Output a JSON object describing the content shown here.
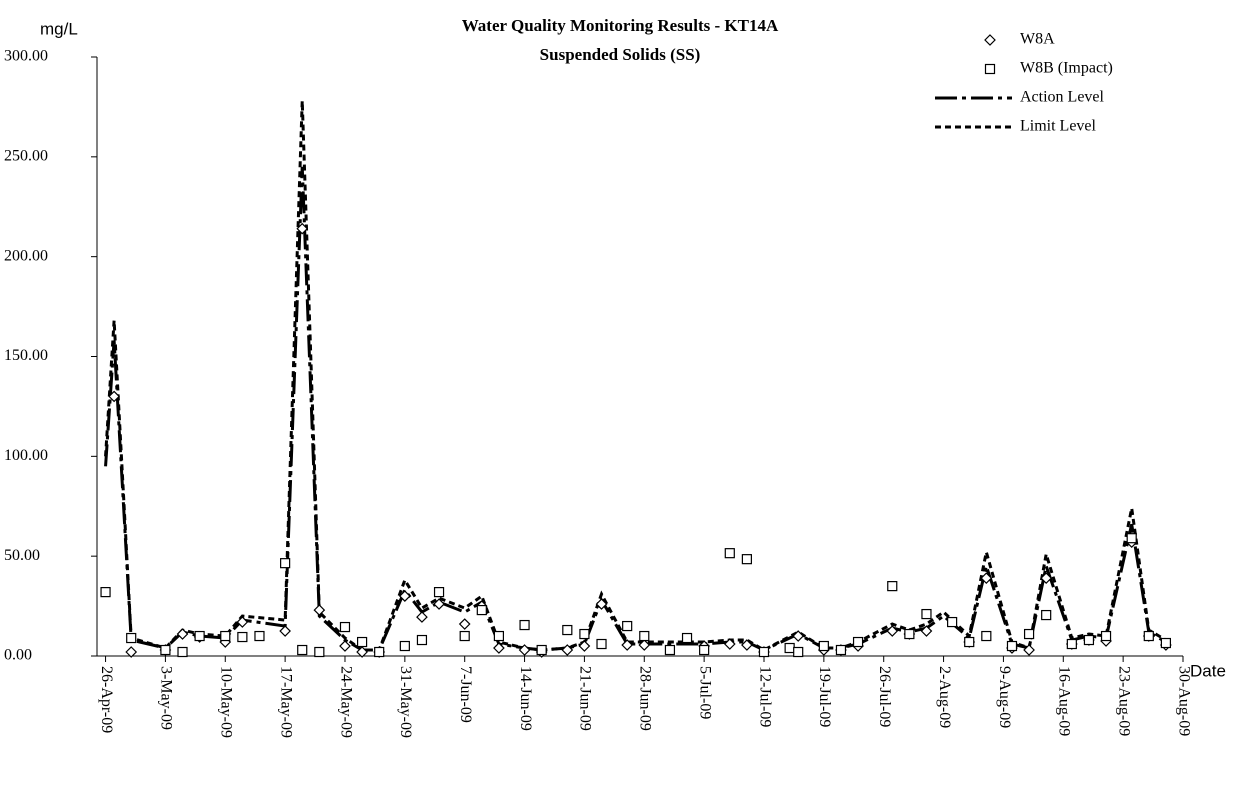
{
  "chart_data": {
    "type": "scatter",
    "title": "Water Quality Monitoring Results - KT14A",
    "subtitle": "Suspended Solids (SS)",
    "y_label": "mg/L",
    "x_label": "Date",
    "xlim": [
      "2009-04-25",
      "2009-08-30"
    ],
    "ylim": [
      0,
      300
    ],
    "yticks": [
      {
        "value": 0,
        "label": "0.00"
      },
      {
        "value": 50,
        "label": "50.00"
      },
      {
        "value": 100,
        "label": "100.00"
      },
      {
        "value": 150,
        "label": "150.00"
      },
      {
        "value": 200,
        "label": "200.00"
      },
      {
        "value": 250,
        "label": "250.00"
      },
      {
        "value": 300,
        "label": "300.00"
      }
    ],
    "xticks": [
      {
        "value": "2009-04-26",
        "label": "26-Apr-09"
      },
      {
        "value": "2009-05-03",
        "label": "3-May-09"
      },
      {
        "value": "2009-05-10",
        "label": "10-May-09"
      },
      {
        "value": "2009-05-17",
        "label": "17-May-09"
      },
      {
        "value": "2009-05-24",
        "label": "24-May-09"
      },
      {
        "value": "2009-05-31",
        "label": "31-May-09"
      },
      {
        "value": "2009-06-07",
        "label": "7-Jun-09"
      },
      {
        "value": "2009-06-14",
        "label": "14-Jun-09"
      },
      {
        "value": "2009-06-21",
        "label": "21-Jun-09"
      },
      {
        "value": "2009-06-28",
        "label": "28-Jun-09"
      },
      {
        "value": "2009-07-05",
        "label": "5-Jul-09"
      },
      {
        "value": "2009-07-12",
        "label": "12-Jul-09"
      },
      {
        "value": "2009-07-19",
        "label": "19-Jul-09"
      },
      {
        "value": "2009-07-26",
        "label": "26-Jul-09"
      },
      {
        "value": "2009-08-02",
        "label": "2-Aug-09"
      },
      {
        "value": "2009-08-09",
        "label": "9-Aug-09"
      },
      {
        "value": "2009-08-16",
        "label": "16-Aug-09"
      },
      {
        "value": "2009-08-23",
        "label": "23-Aug-09"
      },
      {
        "value": "2009-08-30",
        "label": "30-Aug-09"
      }
    ],
    "series": [
      {
        "name": "W8A",
        "color": "#000000",
        "marker": "diamond",
        "x": [
          "2009-04-27",
          "2009-04-29",
          "2009-05-03",
          "2009-05-05",
          "2009-05-07",
          "2009-05-10",
          "2009-05-12",
          "2009-05-17",
          "2009-05-19",
          "2009-05-21",
          "2009-05-24",
          "2009-05-26",
          "2009-05-28",
          "2009-05-31",
          "2009-06-02",
          "2009-06-04",
          "2009-06-07",
          "2009-06-09",
          "2009-06-11",
          "2009-06-14",
          "2009-06-16",
          "2009-06-19",
          "2009-06-21",
          "2009-06-23",
          "2009-06-26",
          "2009-06-28",
          "2009-07-05",
          "2009-07-08",
          "2009-07-10",
          "2009-07-12",
          "2009-07-16",
          "2009-07-19",
          "2009-07-21",
          "2009-07-23",
          "2009-07-27",
          "2009-07-29",
          "2009-07-31",
          "2009-08-05",
          "2009-08-07",
          "2009-08-10",
          "2009-08-12",
          "2009-08-14",
          "2009-08-17",
          "2009-08-19",
          "2009-08-21",
          "2009-08-24",
          "2009-08-26",
          "2009-08-28"
        ],
        "values": [
          130,
          2,
          3,
          11,
          9.5,
          7,
          17,
          12.5,
          214,
          23,
          5,
          2,
          2,
          30,
          19.5,
          26,
          16,
          25,
          4,
          3,
          2,
          3,
          5,
          26,
          5.5,
          5.5,
          5,
          6,
          5.5,
          2,
          10,
          3,
          3,
          5,
          12.5,
          11,
          12.5,
          7,
          39,
          4,
          3,
          39,
          6,
          8,
          7.5,
          57,
          10,
          5.5
        ]
      },
      {
        "name": "W8B (Impact)",
        "color": "#000000",
        "marker": "square",
        "x": [
          "2009-04-26",
          "2009-04-29",
          "2009-05-03",
          "2009-05-05",
          "2009-05-07",
          "2009-05-10",
          "2009-05-12",
          "2009-05-14",
          "2009-05-17",
          "2009-05-19",
          "2009-05-21",
          "2009-05-24",
          "2009-05-26",
          "2009-05-28",
          "2009-05-31",
          "2009-06-02",
          "2009-06-04",
          "2009-06-07",
          "2009-06-09",
          "2009-06-11",
          "2009-06-14",
          "2009-06-16",
          "2009-06-19",
          "2009-06-21",
          "2009-06-23",
          "2009-06-26",
          "2009-06-28",
          "2009-07-01",
          "2009-07-03",
          "2009-07-05",
          "2009-07-08",
          "2009-07-10",
          "2009-07-12",
          "2009-07-15",
          "2009-07-16",
          "2009-07-19",
          "2009-07-21",
          "2009-07-23",
          "2009-07-27",
          "2009-07-29",
          "2009-07-31",
          "2009-08-03",
          "2009-08-05",
          "2009-08-07",
          "2009-08-10",
          "2009-08-12",
          "2009-08-14",
          "2009-08-17",
          "2009-08-19",
          "2009-08-21",
          "2009-08-24",
          "2009-08-26",
          "2009-08-28"
        ],
        "values": [
          32,
          9,
          3,
          2,
          10,
          10,
          9.5,
          10,
          46.5,
          3,
          2,
          14.5,
          7,
          2,
          5,
          8,
          32,
          10,
          23,
          10,
          15.5,
          3,
          13,
          11,
          6,
          15,
          10,
          3,
          9,
          3,
          51.5,
          48.5,
          2,
          4,
          2,
          5,
          3,
          7,
          35,
          11,
          21,
          17,
          7,
          10,
          5,
          11,
          20.5,
          6,
          8,
          10,
          59,
          10,
          6.5
        ]
      },
      {
        "name": "Action Level",
        "color": "#000000",
        "dash": "dash-dot",
        "x": [
          "2009-04-26",
          "2009-04-27",
          "2009-04-29",
          "2009-05-03",
          "2009-05-05",
          "2009-05-07",
          "2009-05-10",
          "2009-05-12",
          "2009-05-17",
          "2009-05-19",
          "2009-05-21",
          "2009-05-24",
          "2009-05-26",
          "2009-05-28",
          "2009-05-31",
          "2009-06-02",
          "2009-06-04",
          "2009-06-07",
          "2009-06-09",
          "2009-06-11",
          "2009-06-14",
          "2009-06-16",
          "2009-06-19",
          "2009-06-21",
          "2009-06-23",
          "2009-06-26",
          "2009-06-28",
          "2009-07-05",
          "2009-07-08",
          "2009-07-10",
          "2009-07-12",
          "2009-07-16",
          "2009-07-19",
          "2009-07-21",
          "2009-07-23",
          "2009-07-27",
          "2009-07-29",
          "2009-07-31",
          "2009-08-02",
          "2009-08-05",
          "2009-08-07",
          "2009-08-10",
          "2009-08-12",
          "2009-08-14",
          "2009-08-17",
          "2009-08-19",
          "2009-08-21",
          "2009-08-24",
          "2009-08-26",
          "2009-08-28"
        ],
        "values": [
          95,
          158,
          8,
          4,
          12,
          10,
          9,
          18,
          15,
          245,
          20,
          8,
          3,
          3,
          33,
          22,
          27,
          22,
          27,
          6,
          4,
          3,
          4,
          6,
          28,
          6,
          6,
          6,
          7,
          7,
          3,
          11,
          4,
          4,
          6,
          14,
          12,
          14,
          20,
          9,
          45,
          6,
          4,
          45,
          8,
          10,
          9,
          66,
          12,
          7
        ]
      },
      {
        "name": "Limit Level",
        "color": "#000000",
        "dash": "dash",
        "x": [
          "2009-04-26",
          "2009-04-27",
          "2009-04-29",
          "2009-05-03",
          "2009-05-05",
          "2009-05-07",
          "2009-05-10",
          "2009-05-12",
          "2009-05-17",
          "2009-05-19",
          "2009-05-21",
          "2009-05-24",
          "2009-05-26",
          "2009-05-28",
          "2009-05-31",
          "2009-06-02",
          "2009-06-04",
          "2009-06-07",
          "2009-06-09",
          "2009-06-11",
          "2009-06-14",
          "2009-06-16",
          "2009-06-19",
          "2009-06-21",
          "2009-06-23",
          "2009-06-26",
          "2009-06-28",
          "2009-07-05",
          "2009-07-08",
          "2009-07-10",
          "2009-07-12",
          "2009-07-16",
          "2009-07-19",
          "2009-07-21",
          "2009-07-23",
          "2009-07-27",
          "2009-07-29",
          "2009-07-31",
          "2009-08-02",
          "2009-08-05",
          "2009-08-07",
          "2009-08-10",
          "2009-08-12",
          "2009-08-14",
          "2009-08-17",
          "2009-08-19",
          "2009-08-21",
          "2009-08-24",
          "2009-08-26",
          "2009-08-28"
        ],
        "values": [
          100,
          168,
          9,
          4,
          13,
          11,
          10,
          20,
          18,
          278,
          22,
          9,
          3,
          3,
          38,
          24,
          29,
          24,
          30,
          7,
          4,
          3,
          4,
          7,
          31,
          7,
          7,
          7,
          8,
          8,
          3,
          12,
          4,
          4,
          7,
          16,
          13,
          16,
          22,
          10,
          52,
          7,
          4,
          51,
          9,
          11,
          10,
          74,
          13,
          8
        ]
      }
    ]
  }
}
